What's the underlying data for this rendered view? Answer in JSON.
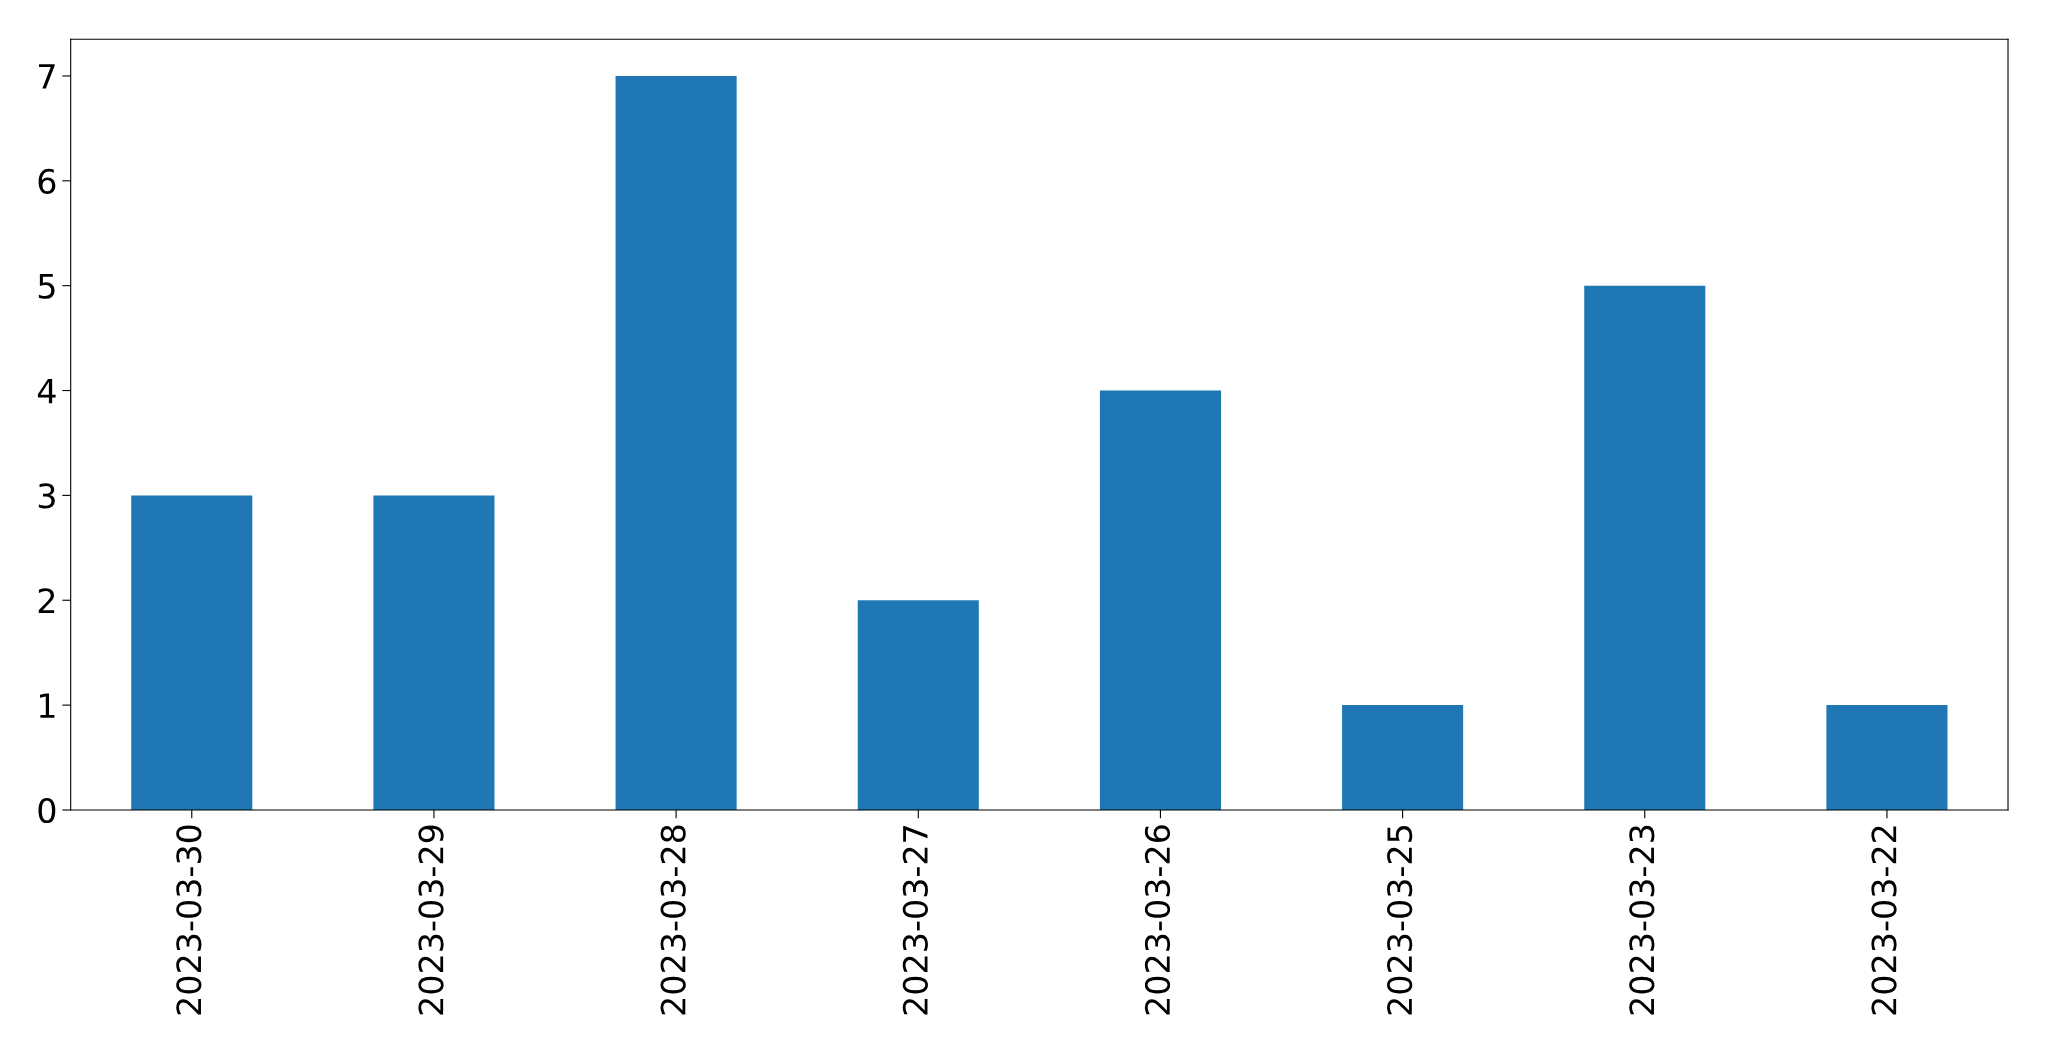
{
  "chart_data": {
    "type": "bar",
    "categories": [
      "2023-03-30",
      "2023-03-29",
      "2023-03-28",
      "2023-03-27",
      "2023-03-26",
      "2023-03-25",
      "2023-03-23",
      "2023-03-22"
    ],
    "values": [
      3,
      3,
      7,
      2,
      4,
      1,
      5,
      1
    ],
    "color": "#1f77b4",
    "ylim": [
      0,
      7.35
    ],
    "yticks": [
      0,
      1,
      2,
      3,
      4,
      5,
      6,
      7
    ],
    "grid": false
  }
}
